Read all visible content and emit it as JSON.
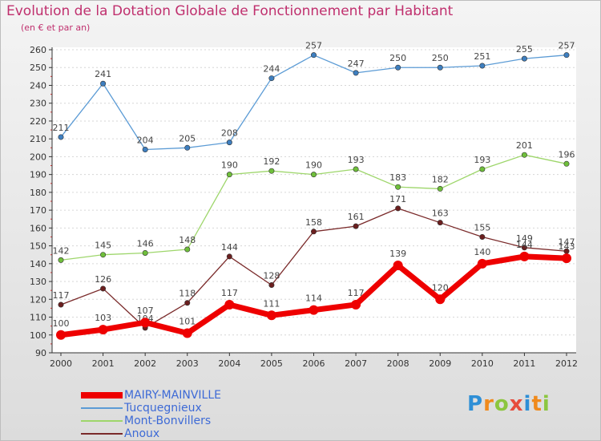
{
  "header": {
    "title": "Evolution de la Dotation Globale de Fonctionnement par Habitant",
    "subtitle": "(en € et par an)"
  },
  "logo": {
    "text": "Proxiti",
    "letters": [
      {
        "ch": "P",
        "color": "#2e8fd6"
      },
      {
        "ch": "r",
        "color": "#f08a1c"
      },
      {
        "ch": "o",
        "color": "#8cc63f"
      },
      {
        "ch": "x",
        "color": "#e74c3c"
      },
      {
        "ch": "i",
        "color": "#2e8fd6"
      },
      {
        "ch": "t",
        "color": "#f08a1c"
      },
      {
        "ch": "i",
        "color": "#8cc63f"
      }
    ]
  },
  "chart_data": {
    "type": "line",
    "title": "Evolution de la Dotation Globale de Fonctionnement par Habitant",
    "subtitle": "(en € et par an)",
    "x": [
      2000,
      2001,
      2002,
      2003,
      2004,
      2005,
      2006,
      2007,
      2008,
      2009,
      2010,
      2011,
      2012
    ],
    "ylim": [
      90,
      260
    ],
    "yticks": [
      90,
      100,
      110,
      120,
      130,
      140,
      150,
      160,
      170,
      180,
      190,
      200,
      210,
      220,
      230,
      240,
      250,
      260
    ],
    "grid": "horizontal dashed",
    "legend_position": "bottom-left",
    "series": [
      {
        "name": "Tucquegnieux",
        "color": "#5b9bd5",
        "marker": "#3e7fc0",
        "values": [
          211,
          241,
          204,
          205,
          208,
          244,
          257,
          247,
          250,
          250,
          251,
          255,
          257
        ]
      },
      {
        "name": "Mont-Bonvillers",
        "color": "#9ed66b",
        "marker": "#6fbf3b",
        "values": [
          142,
          145,
          146,
          148,
          190,
          192,
          190,
          193,
          183,
          182,
          193,
          201,
          196
        ]
      },
      {
        "name": "Anoux",
        "color": "#7a2a2a",
        "marker": "#6b1f1f",
        "values": [
          117,
          126,
          104,
          118,
          144,
          128,
          158,
          161,
          171,
          163,
          155,
          149,
          147
        ]
      },
      {
        "name": "MAIRY-MAINVILLE",
        "color": "#ee0000",
        "marker": "#ee0000",
        "values": [
          100,
          103,
          107,
          101,
          117,
          111,
          114,
          117,
          139,
          120,
          140,
          144,
          143
        ]
      }
    ],
    "legend_order": [
      "MAIRY-MAINVILLE",
      "Tucquegnieux",
      "Mont-Bonvillers",
      "Anoux"
    ]
  }
}
